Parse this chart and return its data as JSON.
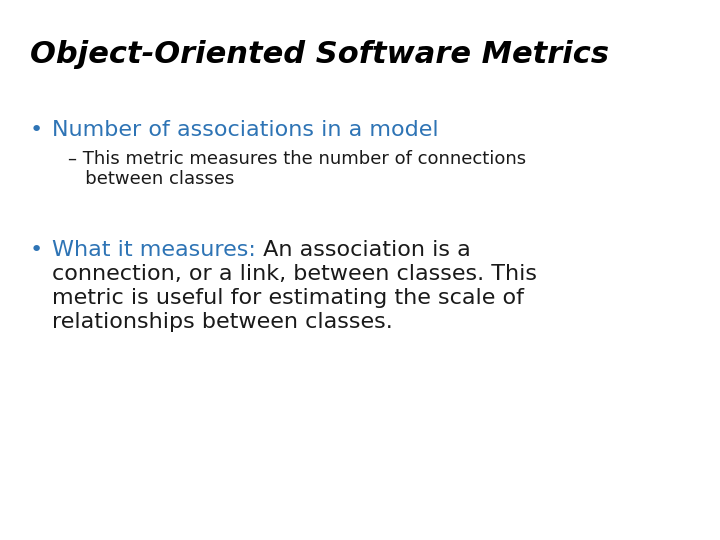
{
  "title": "Object-Oriented Software Metrics",
  "title_color": "#000000",
  "title_fontstyle": "italic",
  "title_fontweight": "bold",
  "title_fontsize": 22,
  "background_color": "#ffffff",
  "bullet1_color": "#2E74B5",
  "bullet1_text": "Number of associations in a model",
  "bullet1_fontsize": 16,
  "sub_bullet1_color": "#1a1a1a",
  "sub_bullet1_line1": "– This metric measures the number of connections",
  "sub_bullet1_line2": "   between classes",
  "sub_bullet1_fontsize": 13,
  "bullet2_label_color": "#2E74B5",
  "bullet2_label": "What it measures:",
  "bullet2_color": "#1a1a1a",
  "bullet2_fontsize": 16,
  "bullet2_line1_after_label": " An association is a",
  "bullet2_line2": "connection, or a link, between classes. This",
  "bullet2_line3": "metric is useful for estimating the scale of",
  "bullet2_line4": "relationships between classes."
}
